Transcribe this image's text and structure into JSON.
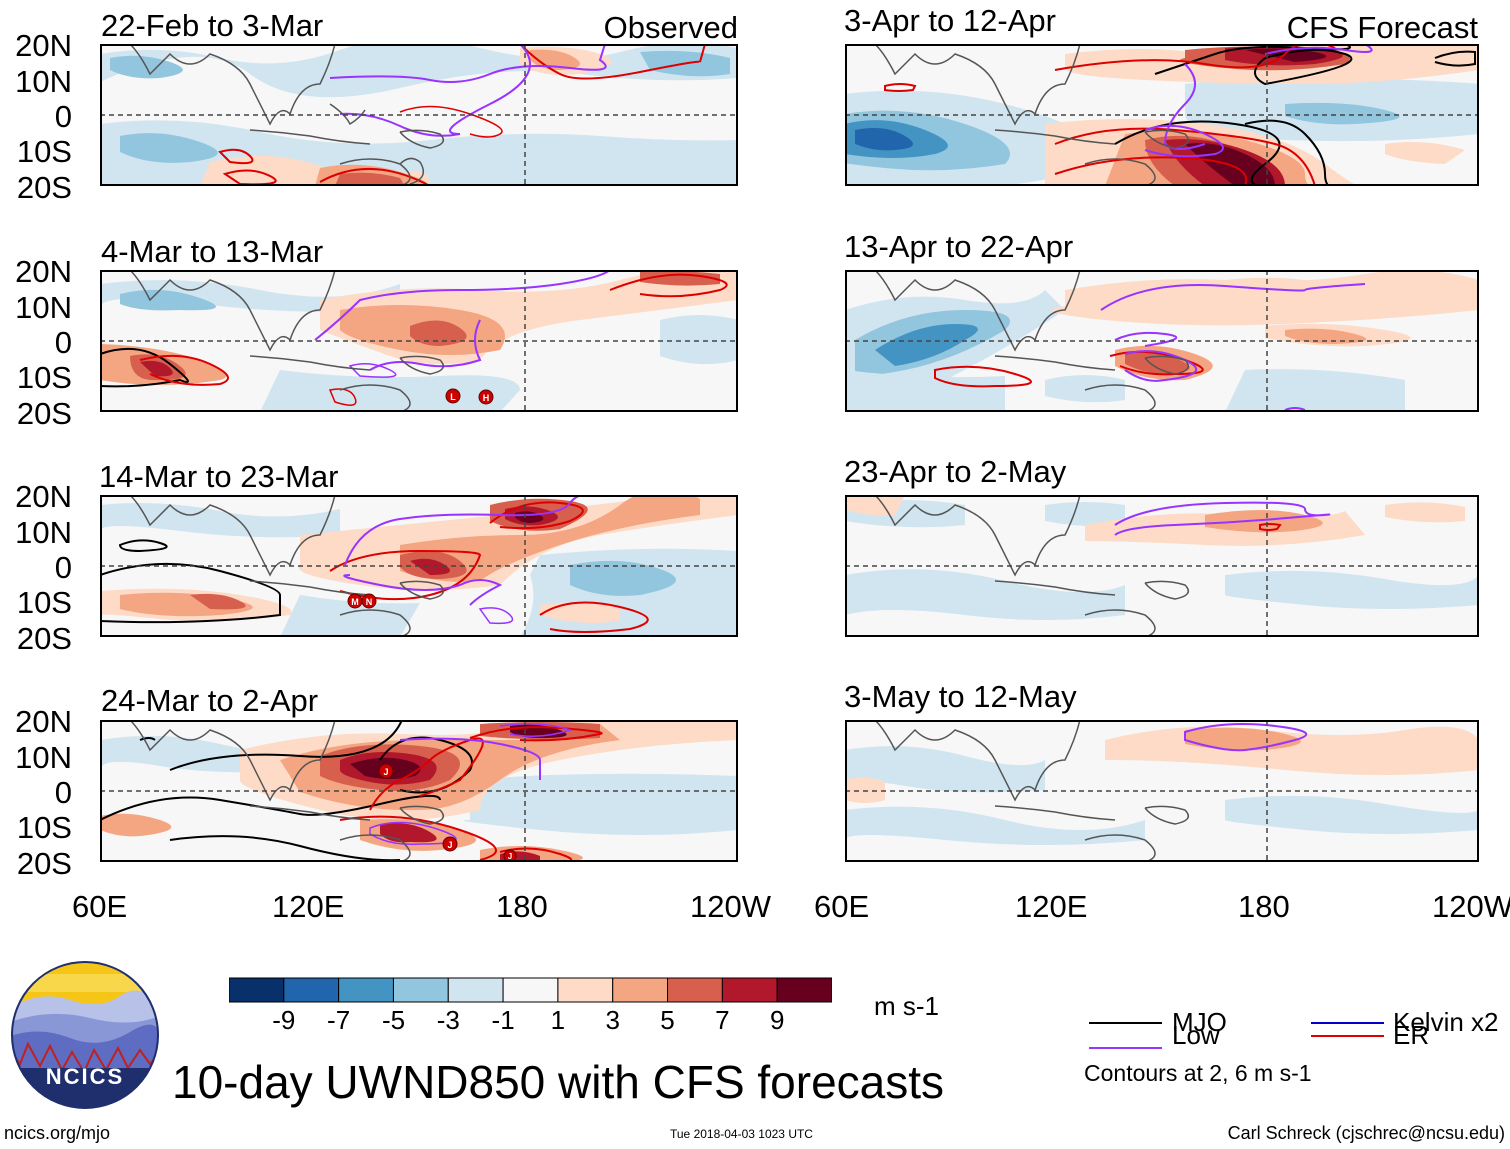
{
  "panels": [
    {
      "period": "22-Feb to 3-Mar",
      "label": "Observed"
    },
    {
      "period": "4-Mar to 13-Mar",
      "label": ""
    },
    {
      "period": "14-Mar to 23-Mar",
      "label": ""
    },
    {
      "period": "24-Mar to 2-Apr",
      "label": ""
    },
    {
      "period": "3-Apr to 12-Apr",
      "label": "CFS Forecast"
    },
    {
      "period": "13-Apr to 22-Apr",
      "label": ""
    },
    {
      "period": "23-Apr to 2-May",
      "label": ""
    },
    {
      "period": "3-May to 12-May",
      "label": ""
    }
  ],
  "axes": {
    "lat_ticks": [
      "20N",
      "10N",
      "0",
      "10S",
      "20S"
    ],
    "lon_ticks": [
      "60E",
      "120E",
      "180",
      "120W"
    ]
  },
  "colorbar": {
    "ticks": [
      "-9",
      "-7",
      "-5",
      "-3",
      "-1",
      "1",
      "3",
      "5",
      "7",
      "9"
    ],
    "colors": [
      "#08306b",
      "#2166ac",
      "#4393c3",
      "#92c5de",
      "#d1e5f0",
      "#f7f7f7",
      "#fddbc7",
      "#f4a582",
      "#d6604d",
      "#b2182b",
      "#67001f"
    ],
    "units": "m s-1"
  },
  "legend": {
    "items": [
      {
        "label": "MJO",
        "color": "#000000"
      },
      {
        "label": "Kelvin x2",
        "color": "#0000cc"
      },
      {
        "label": "Low",
        "color": "#9933ff"
      },
      {
        "label": "ER",
        "color": "#dd0000"
      }
    ],
    "note": "Contours at 2, 6 m s-1"
  },
  "title": "10-day UWND850 with CFS forecasts",
  "logo": {
    "text": "NCICS"
  },
  "footer": {
    "url": "ncics.org/mjo",
    "timestamp": "Tue 2018-04-03 1023 UTC",
    "credit": "Carl Schreck (cjschrec@ncsu.edu)"
  },
  "storm_markers": [
    {
      "panel": 1,
      "letter": "L"
    },
    {
      "panel": 1,
      "letter": "H"
    },
    {
      "panel": 2,
      "letter": "M"
    },
    {
      "panel": 2,
      "letter": "N"
    },
    {
      "panel": 3,
      "letter": "J"
    },
    {
      "panel": 3,
      "letter": "J"
    },
    {
      "panel": 3,
      "letter": "J"
    }
  ]
}
